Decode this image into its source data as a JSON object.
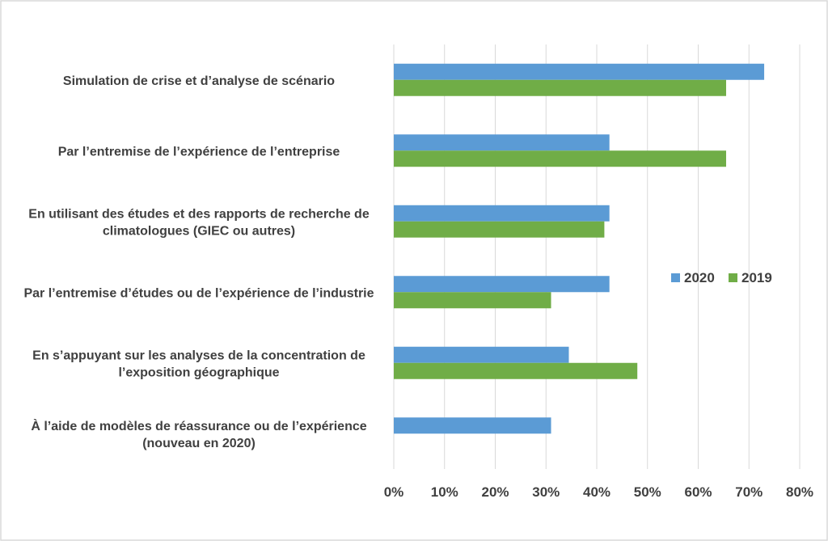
{
  "chart_data": {
    "type": "bar",
    "orientation": "horizontal",
    "categories": [
      [
        "Simulation de crise et d’analyse de scénario"
      ],
      [
        "Par l’entremise de l’expérience de l’entreprise"
      ],
      [
        "En utilisant des études et des rapports de recherche de",
        "climatologues (GIEC ou autres)"
      ],
      [
        "Par l’entremise d’études ou de l’expérience de l’industrie"
      ],
      [
        "En s’appuyant sur les analyses de la concentration de",
        "l’exposition géographique"
      ],
      [
        "À l’aide de modèles de réassurance ou de l’expérience",
        "(nouveau en 2020)"
      ]
    ],
    "series": [
      {
        "name": "2020",
        "color": "#5b9bd5",
        "values": [
          73,
          42.5,
          42.5,
          42.5,
          34.5,
          31
        ]
      },
      {
        "name": "2019",
        "color": "#70ad47",
        "values": [
          65.5,
          65.5,
          41.5,
          31,
          48,
          null
        ]
      }
    ],
    "xlim": [
      0,
      80
    ],
    "xticks": [
      0,
      10,
      20,
      30,
      40,
      50,
      60,
      70,
      80
    ],
    "tick_suffix": "%",
    "grid": true,
    "legend_position": "right"
  }
}
